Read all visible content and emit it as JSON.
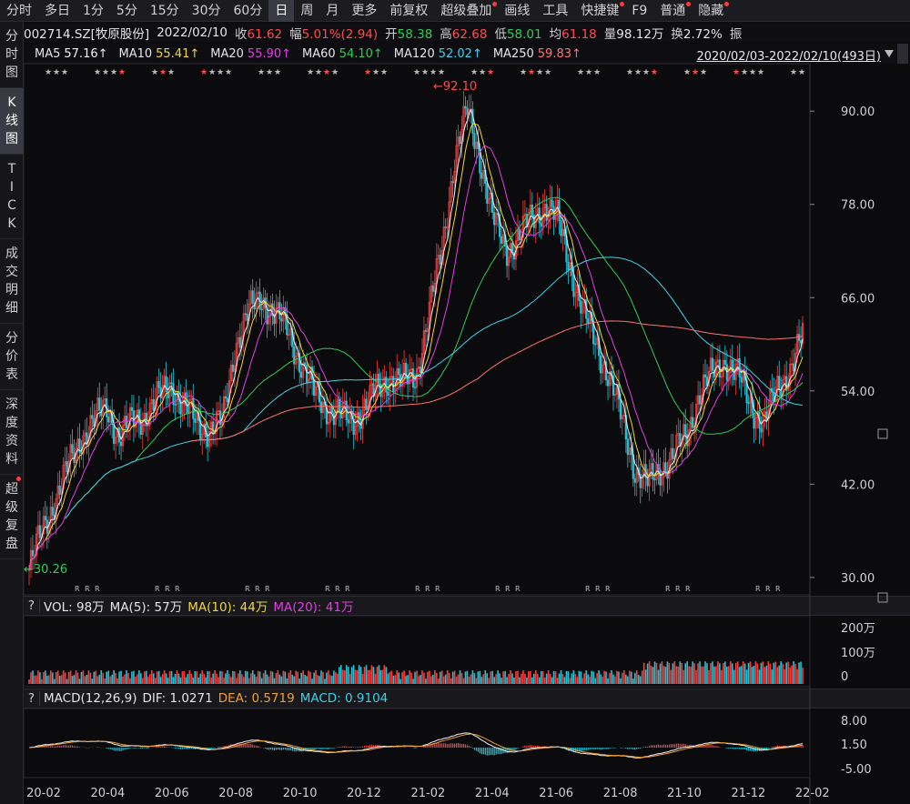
{
  "period_tabs": [
    {
      "label": "分时",
      "active": false,
      "dot": false
    },
    {
      "label": "多日",
      "active": false,
      "dot": false
    },
    {
      "label": "1分",
      "active": false,
      "dot": false
    },
    {
      "label": "5分",
      "active": false,
      "dot": false
    },
    {
      "label": "15分",
      "active": false,
      "dot": false
    },
    {
      "label": "30分",
      "active": false,
      "dot": false
    },
    {
      "label": "60分",
      "active": false,
      "dot": false
    },
    {
      "label": "日",
      "active": true,
      "dot": false
    },
    {
      "label": "周",
      "active": false,
      "dot": false
    },
    {
      "label": "月",
      "active": false,
      "dot": false
    },
    {
      "label": "更多",
      "active": false,
      "dot": false
    },
    {
      "label": "前复权",
      "active": false,
      "dot": false
    },
    {
      "label": "超级叠加",
      "active": false,
      "dot": true
    },
    {
      "label": "画线",
      "active": false,
      "dot": false
    },
    {
      "label": "工具",
      "active": false,
      "dot": false
    },
    {
      "label": "快捷键",
      "active": false,
      "dot": true
    },
    {
      "label": "F9",
      "active": false,
      "dot": false
    },
    {
      "label": "普通",
      "active": false,
      "dot": true
    },
    {
      "label": "隐藏",
      "active": false,
      "dot": true
    }
  ],
  "sidebar_tabs": [
    {
      "label": [
        "分",
        "时",
        "图"
      ],
      "active": false,
      "dot": false
    },
    {
      "label": [
        "K",
        "线",
        "图"
      ],
      "active": true,
      "dot": false
    },
    {
      "label": [
        "T",
        "I",
        "C",
        "K"
      ],
      "active": false,
      "dot": false
    },
    {
      "label": [
        "成",
        "交",
        "明",
        "细"
      ],
      "active": false,
      "dot": false
    },
    {
      "label": [
        "分",
        "价",
        "表"
      ],
      "active": false,
      "dot": false
    },
    {
      "label": [
        "深",
        "度",
        "资",
        "料"
      ],
      "active": false,
      "dot": false
    },
    {
      "label": [
        "超",
        "级",
        "复",
        "盘"
      ],
      "active": false,
      "dot": true
    }
  ],
  "quote": {
    "code": "002714.SZ[牧原股份]",
    "date": "2022/02/10",
    "close_label": "收",
    "close": "61.62",
    "change_label": "幅",
    "change": "5.01%(2.94)",
    "open_label": "开",
    "open": "58.38",
    "high_label": "高",
    "high": "62.68",
    "low_label": "低",
    "low": "58.01",
    "avg_label": "均",
    "avg": "61.18",
    "volume_label": "量",
    "volume": "98.12万",
    "turnover_label": "换",
    "turnover": "2.72%",
    "amplitude_label": "振"
  },
  "ma_values": [
    {
      "name": "MA5",
      "value": "57.16↑",
      "color": "#f2f2f2"
    },
    {
      "name": "MA10",
      "value": "55.41↑",
      "color": "#f2d53c"
    },
    {
      "name": "MA20",
      "value": "55.90↑",
      "color": "#e040e0"
    },
    {
      "name": "MA60",
      "value": "54.10↑",
      "color": "#2ecc52"
    },
    {
      "name": "MA120",
      "value": "52.02↑",
      "color": "#3fd0e6"
    },
    {
      "name": "MA250",
      "value": "59.83↑",
      "color": "#ff7070"
    }
  ],
  "date_range": "2020/02/03-2022/02/10(493日)",
  "kline": {
    "y_ticks": [
      "90.00",
      "78.00",
      "66.00",
      "54.00",
      "42.00",
      "30.00"
    ],
    "high_marker": "92.10",
    "low_marker": "30.26"
  },
  "volume_panel": {
    "q": "?",
    "title": "VOL: 98万",
    "ma5": "MA(5): 57万",
    "ma10": "MA(10): 44万",
    "ma20": "MA(20): 41万",
    "y_ticks": [
      "200万",
      "100万",
      "0"
    ]
  },
  "macd_panel": {
    "q": "?",
    "title": "MACD(12,26,9)",
    "dif": "DIF: 1.0271",
    "dea": "DEA: 0.5719",
    "macd": "MACD: 0.9104",
    "y_ticks": [
      "8.00",
      "1.50",
      "-5.00"
    ]
  },
  "x_ticks": [
    "20-02",
    "20-04",
    "20-06",
    "20-08",
    "20-10",
    "20-12",
    "21-02",
    "21-04",
    "21-06",
    "21-08",
    "21-10",
    "21-12",
    "22-02"
  ],
  "colors": {
    "up": "#ff3b3b",
    "down": "#22c4d6",
    "bg": "#0b0b0e"
  },
  "chart_data": {
    "type": "candlestick",
    "series_close": [
      31,
      36,
      40,
      44,
      48,
      50,
      52,
      48,
      50,
      51,
      53,
      55,
      52,
      50,
      49,
      50,
      60,
      64,
      66,
      64,
      62,
      58,
      54,
      52,
      51,
      50,
      52,
      54,
      56,
      55,
      56,
      64,
      72,
      84,
      90,
      84,
      76,
      72,
      74,
      76,
      78,
      76,
      70,
      64,
      60,
      56,
      50,
      44,
      42,
      44,
      46,
      48,
      54,
      56,
      58,
      56,
      52,
      50,
      54,
      57,
      61
    ],
    "ylim": [
      28,
      94
    ]
  }
}
